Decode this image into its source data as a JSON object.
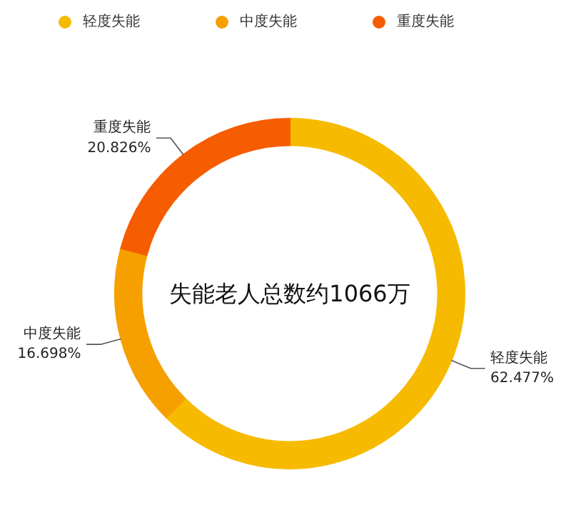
{
  "chart_data": {
    "type": "donut",
    "categories": [
      "轻度失能",
      "中度失能",
      "重度失能"
    ],
    "values": [
      62.477,
      16.698,
      20.826
    ],
    "colors": [
      "#f6bb00",
      "#f6a000",
      "#f65c00"
    ],
    "value_labels": [
      "62.477%",
      "16.698%",
      "20.826%"
    ],
    "annotations": [
      "失能老人总数约1066万"
    ],
    "legend": "top"
  }
}
